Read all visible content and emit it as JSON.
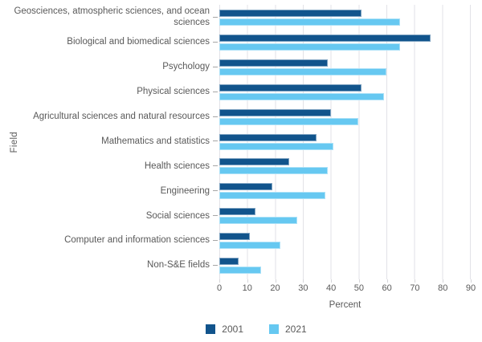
{
  "chart_data": {
    "type": "bar",
    "orientation": "horizontal",
    "categories": [
      "Geosciences, atmospheric sciences, and ocean sciences",
      "Biological and biomedical sciences",
      "Psychology",
      "Physical sciences",
      "Agricultural sciences and natural resources",
      "Mathematics and statistics",
      "Health sciences",
      "Engineering",
      "Social sciences",
      "Computer and information sciences",
      "Non-S&E fields"
    ],
    "series": [
      {
        "name": "2001",
        "color": "#11548c",
        "values": [
          51,
          76,
          39,
          51,
          40,
          35,
          25,
          19,
          13,
          11,
          7
        ]
      },
      {
        "name": "2021",
        "color": "#66c8f1",
        "values": [
          65,
          65,
          60,
          59,
          50,
          41,
          39,
          38,
          28,
          22,
          15
        ]
      }
    ],
    "xlabel": "Percent",
    "ylabel": "Field",
    "xlim": [
      0,
      90
    ],
    "xticks": [
      0,
      10,
      20,
      30,
      40,
      50,
      60,
      70,
      80,
      90
    ],
    "grid": true,
    "legend_position": "bottom",
    "colors": {
      "grid": "#e2e2e7",
      "text": "#595959"
    }
  }
}
